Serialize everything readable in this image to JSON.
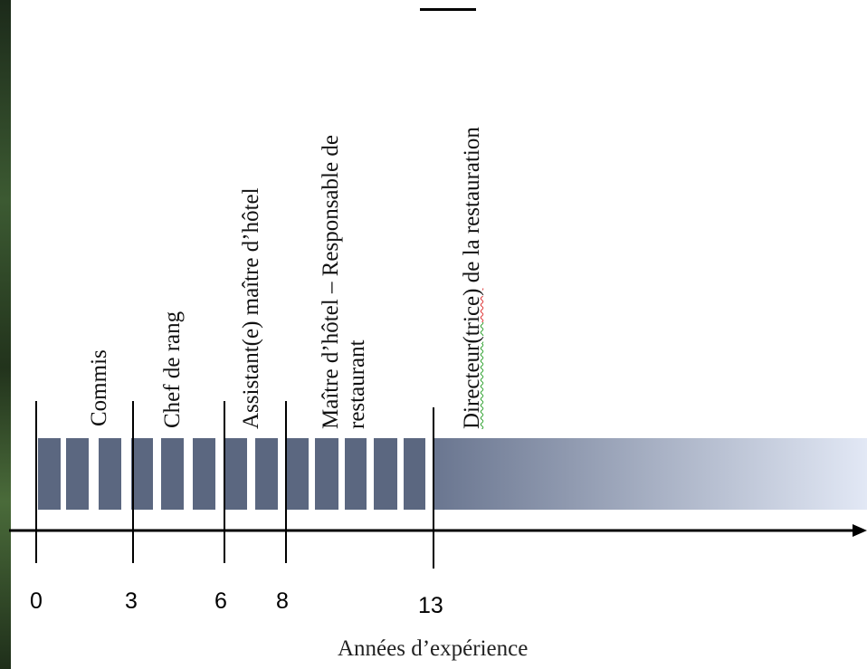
{
  "ticks": [
    "0",
    "3",
    "6",
    "8",
    "13"
  ],
  "axis_title": "Années d’expérience",
  "roles": {
    "commis": "Commis",
    "chef_de_rang": "Chef de rang",
    "assistant": "Assistant(e) maître d’hôtel",
    "maitre_line1": "Maître d’hôtel – Responsable de",
    "maitre_line2": "restaurant",
    "directeur_prefix": "Directeur",
    "directeur_marked_a": "(tr",
    "directeur_marked_b": "ice)",
    "directeur_suffix": " de la restauration"
  },
  "colors": {
    "bar": "#5b6780",
    "fade_start": "#6a7690",
    "fade_end": "#e2e8f5"
  }
}
